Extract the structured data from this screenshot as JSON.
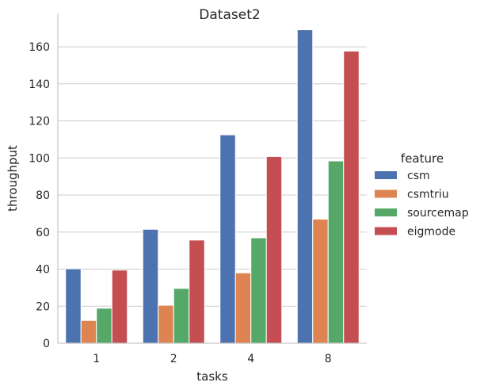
{
  "chart_data": {
    "type": "bar",
    "title": "Dataset2",
    "xlabel": "tasks",
    "ylabel": "throughput",
    "categories": [
      "1",
      "2",
      "4",
      "8"
    ],
    "ylim": [
      0,
      178
    ],
    "yticks": [
      0,
      20,
      40,
      60,
      80,
      100,
      120,
      140,
      160
    ],
    "grid": "horizontal",
    "legend": {
      "title": "feature",
      "placement": "right"
    },
    "series": [
      {
        "name": "csm",
        "color": "#4c72b0",
        "values": [
          40.2,
          61.5,
          112.5,
          169.2
        ]
      },
      {
        "name": "csmtriu",
        "color": "#dd8452",
        "values": [
          12.3,
          20.5,
          38.0,
          67.0
        ]
      },
      {
        "name": "sourcemap",
        "color": "#55a868",
        "values": [
          18.9,
          29.6,
          56.9,
          98.4
        ]
      },
      {
        "name": "eigmode",
        "color": "#c44e52",
        "values": [
          39.5,
          55.7,
          100.8,
          157.7
        ]
      }
    ]
  }
}
